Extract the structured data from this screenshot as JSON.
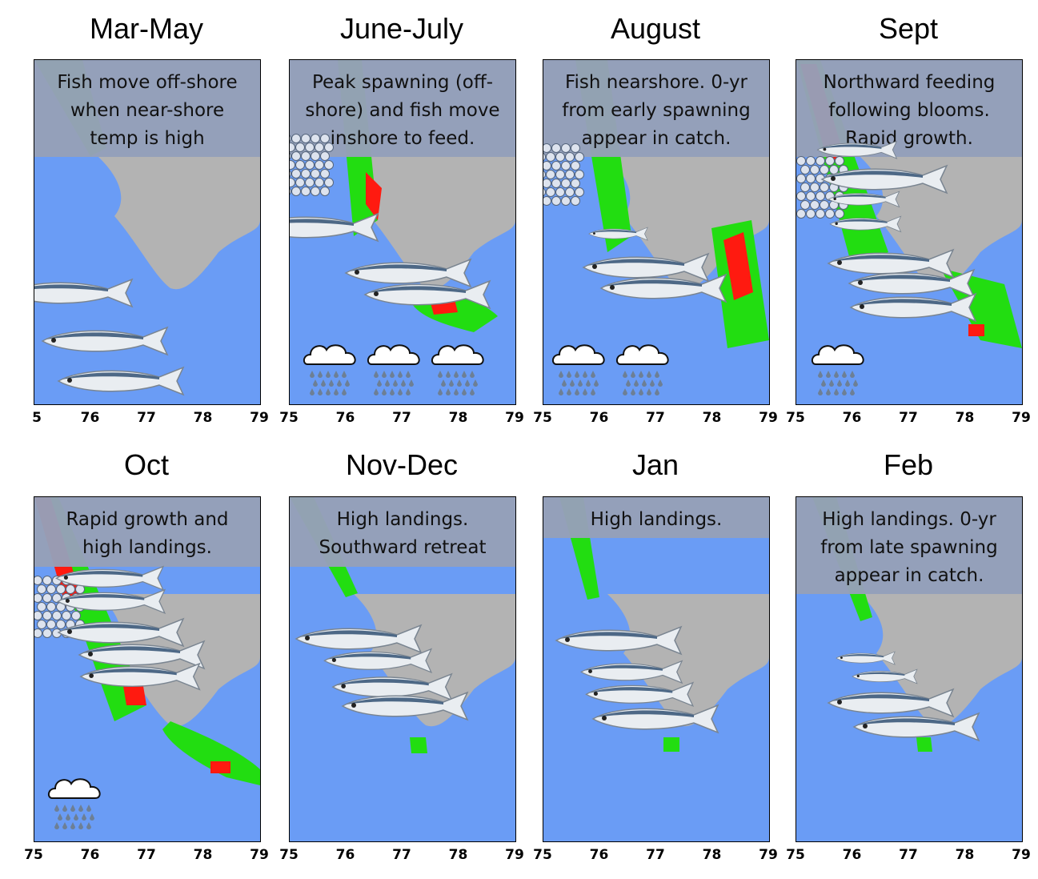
{
  "panels": [
    {
      "title": "Mar-May",
      "caption": "Fish move off-shore when near-shore temp is high",
      "ticks": [
        "5",
        "76",
        "77",
        "78",
        "79"
      ]
    },
    {
      "title": "June-July",
      "caption": "Peak spawning (off-shore) and fish move inshore to feed.",
      "ticks": [
        "75",
        "76",
        "77",
        "78",
        "79"
      ]
    },
    {
      "title": "August",
      "caption": "Fish nearshore. 0-yr from early spawning appear in catch.",
      "ticks": [
        "75",
        "76",
        "77",
        "78",
        "79"
      ]
    },
    {
      "title": "Sept",
      "caption": "Northward feeding following blooms. Rapid growth.",
      "ticks": [
        "75",
        "76",
        "77",
        "78",
        "79"
      ]
    },
    {
      "title": "Oct",
      "caption": "Rapid growth and high landings.",
      "ticks": [
        "75",
        "76",
        "77",
        "78",
        "79"
      ]
    },
    {
      "title": "Nov-Dec",
      "caption": "High landings. Southward retreat",
      "ticks": [
        "75",
        "76",
        "77",
        "78",
        "79"
      ]
    },
    {
      "title": "Jan",
      "caption": "High landings.",
      "ticks": [
        "75",
        "76",
        "77",
        "78",
        "79"
      ]
    },
    {
      "title": "Feb",
      "caption": "High landings. 0-yr from late spawning appear in catch.",
      "ticks": [
        "75",
        "76",
        "77",
        "78",
        "79"
      ]
    }
  ],
  "colors": {
    "ocean": "#6a9cf5",
    "land": "#b3b3b3",
    "bloom": "#22dd11",
    "hotspot": "#ff1a10",
    "caption_bg": "#96a0b8"
  }
}
